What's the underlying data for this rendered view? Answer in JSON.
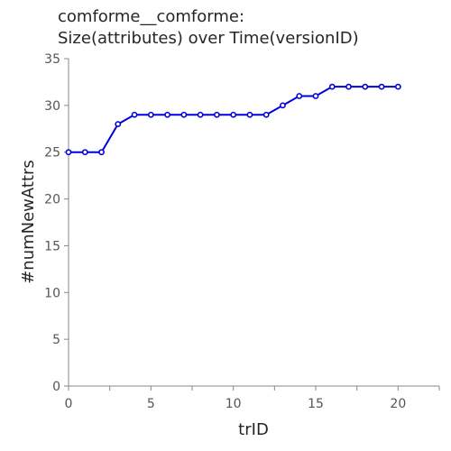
{
  "chart_data": {
    "type": "line",
    "title_line1": "comforme__comforme:",
    "title_line2": "Size(attributes) over Time(versionID)",
    "xlabel": "trID",
    "ylabel": "#numNewAttrs",
    "xlim": [
      0,
      22.5
    ],
    "ylim": [
      0,
      35
    ],
    "xticks": [
      0,
      5,
      10,
      15,
      20
    ],
    "yticks": [
      0,
      5,
      10,
      15,
      20,
      25,
      30,
      35
    ],
    "grid": false,
    "series": [
      {
        "color": "#0000dd",
        "x": [
          0,
          1,
          2,
          3,
          4,
          5,
          6,
          7,
          8,
          9,
          10,
          11,
          12,
          13,
          14,
          15,
          16,
          17,
          18,
          19,
          20
        ],
        "y": [
          25,
          25,
          25,
          28,
          29,
          29,
          29,
          29,
          29,
          29,
          29,
          29,
          29,
          30,
          31,
          31,
          32,
          32,
          32,
          32,
          32
        ]
      }
    ]
  }
}
